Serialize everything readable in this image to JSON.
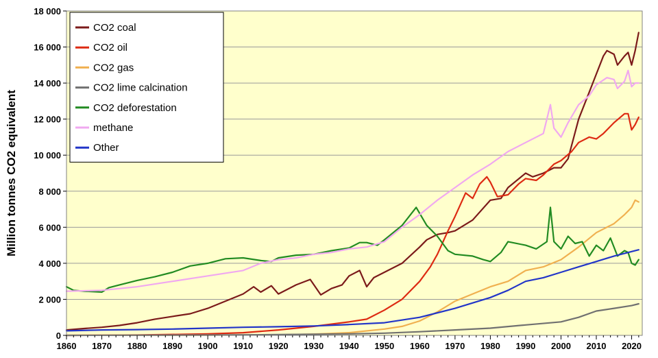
{
  "chart_data": {
    "type": "line",
    "title": "",
    "xlabel": "",
    "ylabel": "Million tonnes CO2 equivalent",
    "xlim": [
      1860,
      2023
    ],
    "ylim": [
      0,
      18000
    ],
    "x_ticks": [
      1860,
      1870,
      1880,
      1890,
      1900,
      1910,
      1920,
      1930,
      1940,
      1950,
      1960,
      1970,
      1980,
      1990,
      2000,
      2010,
      2020
    ],
    "y_ticks": [
      0,
      2000,
      4000,
      6000,
      8000,
      10000,
      12000,
      14000,
      16000,
      18000
    ],
    "y_tick_labels": [
      "0",
      "2 000",
      "4 000",
      "6 000",
      "8 000",
      "10 000",
      "12 000",
      "14 000",
      "16 000",
      "18 000"
    ],
    "grid": "horizontal",
    "legend_position": "top-left",
    "plot_background": "#ffffcc",
    "series": [
      {
        "name": "CO2 coal",
        "color": "#7b1a1a",
        "points": [
          [
            1860,
            300
          ],
          [
            1865,
            380
          ],
          [
            1870,
            450
          ],
          [
            1875,
            550
          ],
          [
            1880,
            700
          ],
          [
            1885,
            900
          ],
          [
            1890,
            1050
          ],
          [
            1895,
            1200
          ],
          [
            1900,
            1500
          ],
          [
            1905,
            1900
          ],
          [
            1910,
            2300
          ],
          [
            1913,
            2700
          ],
          [
            1915,
            2400
          ],
          [
            1918,
            2750
          ],
          [
            1920,
            2300
          ],
          [
            1925,
            2800
          ],
          [
            1929,
            3100
          ],
          [
            1932,
            2250
          ],
          [
            1935,
            2600
          ],
          [
            1938,
            2800
          ],
          [
            1940,
            3300
          ],
          [
            1943,
            3600
          ],
          [
            1945,
            2700
          ],
          [
            1947,
            3200
          ],
          [
            1950,
            3500
          ],
          [
            1955,
            4000
          ],
          [
            1960,
            4900
          ],
          [
            1962,
            5300
          ],
          [
            1965,
            5600
          ],
          [
            1968,
            5700
          ],
          [
            1970,
            5800
          ],
          [
            1975,
            6400
          ],
          [
            1980,
            7500
          ],
          [
            1983,
            7600
          ],
          [
            1985,
            8200
          ],
          [
            1990,
            9000
          ],
          [
            1992,
            8800
          ],
          [
            1995,
            9000
          ],
          [
            1998,
            9300
          ],
          [
            2000,
            9300
          ],
          [
            2002,
            9800
          ],
          [
            2005,
            12000
          ],
          [
            2008,
            13500
          ],
          [
            2010,
            14500
          ],
          [
            2012,
            15500
          ],
          [
            2013,
            15800
          ],
          [
            2015,
            15600
          ],
          [
            2016,
            15000
          ],
          [
            2018,
            15500
          ],
          [
            2019,
            15700
          ],
          [
            2020,
            15000
          ],
          [
            2021,
            15800
          ],
          [
            2022,
            16800
          ]
        ]
      },
      {
        "name": "CO2 oil",
        "color": "#dd2a12",
        "points": [
          [
            1860,
            0
          ],
          [
            1880,
            20
          ],
          [
            1900,
            80
          ],
          [
            1910,
            150
          ],
          [
            1920,
            300
          ],
          [
            1930,
            500
          ],
          [
            1940,
            750
          ],
          [
            1945,
            900
          ],
          [
            1950,
            1400
          ],
          [
            1955,
            2000
          ],
          [
            1960,
            3000
          ],
          [
            1963,
            3800
          ],
          [
            1965,
            4500
          ],
          [
            1968,
            5800
          ],
          [
            1970,
            6600
          ],
          [
            1973,
            7900
          ],
          [
            1975,
            7600
          ],
          [
            1977,
            8400
          ],
          [
            1979,
            8800
          ],
          [
            1980,
            8500
          ],
          [
            1982,
            7700
          ],
          [
            1985,
            7800
          ],
          [
            1988,
            8400
          ],
          [
            1990,
            8700
          ],
          [
            1993,
            8600
          ],
          [
            1995,
            8900
          ],
          [
            1998,
            9500
          ],
          [
            2000,
            9700
          ],
          [
            2003,
            10200
          ],
          [
            2005,
            10700
          ],
          [
            2008,
            11000
          ],
          [
            2010,
            10900
          ],
          [
            2012,
            11200
          ],
          [
            2015,
            11800
          ],
          [
            2018,
            12300
          ],
          [
            2019,
            12300
          ],
          [
            2020,
            11400
          ],
          [
            2021,
            11700
          ],
          [
            2022,
            12100
          ]
        ]
      },
      {
        "name": "CO2 gas",
        "color": "#f0b050",
        "points": [
          [
            1860,
            0
          ],
          [
            1900,
            10
          ],
          [
            1920,
            30
          ],
          [
            1930,
            70
          ],
          [
            1940,
            150
          ],
          [
            1950,
            350
          ],
          [
            1955,
            500
          ],
          [
            1960,
            800
          ],
          [
            1965,
            1300
          ],
          [
            1970,
            1900
          ],
          [
            1975,
            2300
          ],
          [
            1980,
            2700
          ],
          [
            1985,
            3000
          ],
          [
            1990,
            3600
          ],
          [
            1995,
            3800
          ],
          [
            2000,
            4200
          ],
          [
            2005,
            4900
          ],
          [
            2010,
            5700
          ],
          [
            2015,
            6200
          ],
          [
            2018,
            6700
          ],
          [
            2019,
            6900
          ],
          [
            2020,
            7100
          ],
          [
            2021,
            7500
          ],
          [
            2022,
            7400
          ]
        ]
      },
      {
        "name": "CO2 lime calcination",
        "color": "#707070",
        "points": [
          [
            1860,
            0
          ],
          [
            1900,
            20
          ],
          [
            1920,
            40
          ],
          [
            1940,
            80
          ],
          [
            1950,
            120
          ],
          [
            1960,
            200
          ],
          [
            1970,
            300
          ],
          [
            1980,
            400
          ],
          [
            1990,
            580
          ],
          [
            2000,
            750
          ],
          [
            2005,
            1000
          ],
          [
            2010,
            1350
          ],
          [
            2015,
            1500
          ],
          [
            2020,
            1650
          ],
          [
            2022,
            1750
          ]
        ]
      },
      {
        "name": "CO2 deforestation",
        "color": "#228b22",
        "points": [
          [
            1860,
            2700
          ],
          [
            1862,
            2500
          ],
          [
            1865,
            2450
          ],
          [
            1870,
            2400
          ],
          [
            1872,
            2650
          ],
          [
            1875,
            2800
          ],
          [
            1880,
            3050
          ],
          [
            1885,
            3250
          ],
          [
            1890,
            3500
          ],
          [
            1895,
            3850
          ],
          [
            1900,
            4000
          ],
          [
            1905,
            4250
          ],
          [
            1910,
            4300
          ],
          [
            1915,
            4150
          ],
          [
            1918,
            4100
          ],
          [
            1920,
            4300
          ],
          [
            1925,
            4450
          ],
          [
            1930,
            4500
          ],
          [
            1935,
            4700
          ],
          [
            1940,
            4850
          ],
          [
            1943,
            5150
          ],
          [
            1945,
            5150
          ],
          [
            1948,
            5000
          ],
          [
            1950,
            5300
          ],
          [
            1955,
            6100
          ],
          [
            1959,
            7100
          ],
          [
            1962,
            6100
          ],
          [
            1965,
            5500
          ],
          [
            1968,
            4700
          ],
          [
            1970,
            4500
          ],
          [
            1975,
            4400
          ],
          [
            1978,
            4200
          ],
          [
            1980,
            4100
          ],
          [
            1983,
            4600
          ],
          [
            1985,
            5200
          ],
          [
            1990,
            5000
          ],
          [
            1993,
            4800
          ],
          [
            1996,
            5200
          ],
          [
            1997,
            7100
          ],
          [
            1998,
            5200
          ],
          [
            2000,
            4800
          ],
          [
            2002,
            5500
          ],
          [
            2004,
            5100
          ],
          [
            2006,
            5200
          ],
          [
            2008,
            4400
          ],
          [
            2010,
            5000
          ],
          [
            2012,
            4700
          ],
          [
            2014,
            5400
          ],
          [
            2016,
            4400
          ],
          [
            2018,
            4700
          ],
          [
            2019,
            4600
          ],
          [
            2020,
            4000
          ],
          [
            2021,
            3900
          ],
          [
            2022,
            4200
          ]
        ]
      },
      {
        "name": "methane",
        "color": "#f0a8f0",
        "points": [
          [
            1860,
            2450
          ],
          [
            1870,
            2500
          ],
          [
            1880,
            2700
          ],
          [
            1890,
            3000
          ],
          [
            1900,
            3300
          ],
          [
            1910,
            3600
          ],
          [
            1915,
            4000
          ],
          [
            1920,
            4200
          ],
          [
            1925,
            4300
          ],
          [
            1930,
            4500
          ],
          [
            1935,
            4600
          ],
          [
            1940,
            4800
          ],
          [
            1945,
            4900
          ],
          [
            1950,
            5200
          ],
          [
            1955,
            6000
          ],
          [
            1960,
            6700
          ],
          [
            1965,
            7500
          ],
          [
            1970,
            8200
          ],
          [
            1975,
            8900
          ],
          [
            1980,
            9500
          ],
          [
            1985,
            10200
          ],
          [
            1990,
            10700
          ],
          [
            1995,
            11200
          ],
          [
            1997,
            12800
          ],
          [
            1998,
            11500
          ],
          [
            2000,
            11000
          ],
          [
            2002,
            11800
          ],
          [
            2005,
            12800
          ],
          [
            2008,
            13300
          ],
          [
            2010,
            13900
          ],
          [
            2013,
            14300
          ],
          [
            2015,
            14200
          ],
          [
            2016,
            13700
          ],
          [
            2018,
            14100
          ],
          [
            2019,
            14700
          ],
          [
            2020,
            13800
          ],
          [
            2021,
            14000
          ],
          [
            2022,
            14000
          ]
        ]
      },
      {
        "name": "Other",
        "color": "#2235c8",
        "points": [
          [
            1860,
            250
          ],
          [
            1870,
            300
          ],
          [
            1880,
            320
          ],
          [
            1890,
            350
          ],
          [
            1900,
            400
          ],
          [
            1910,
            450
          ],
          [
            1920,
            480
          ],
          [
            1930,
            520
          ],
          [
            1940,
            600
          ],
          [
            1950,
            700
          ],
          [
            1960,
            1000
          ],
          [
            1970,
            1500
          ],
          [
            1980,
            2100
          ],
          [
            1985,
            2500
          ],
          [
            1990,
            3000
          ],
          [
            1995,
            3200
          ],
          [
            2000,
            3500
          ],
          [
            2005,
            3800
          ],
          [
            2010,
            4100
          ],
          [
            2015,
            4400
          ],
          [
            2020,
            4650
          ],
          [
            2022,
            4750
          ]
        ]
      }
    ]
  }
}
